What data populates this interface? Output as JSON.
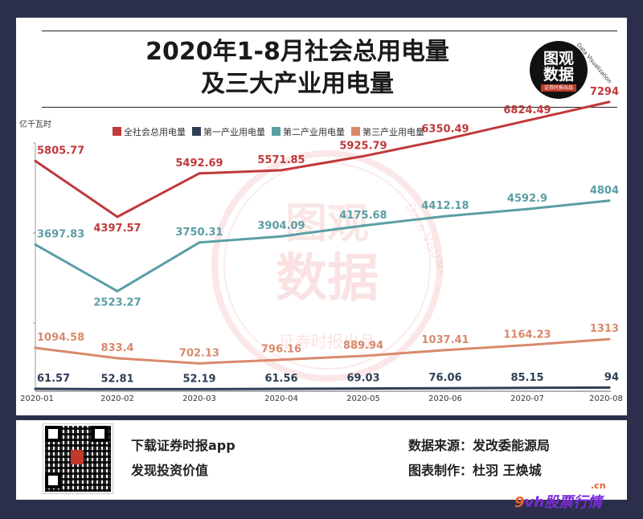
{
  "header": {
    "title_line1": "2020年1-8月社会总用电量",
    "title_line2": "及三大产业用电量"
  },
  "logo": {
    "line1": "图观",
    "line2": "数据",
    "line3": "证券时报出品",
    "arc_text": "Data Visualization"
  },
  "watermark": {
    "line1": "图观",
    "line2": "数据",
    "line3": "证券时报出品",
    "arc_text": "Data Visualization"
  },
  "chart_data": {
    "type": "line",
    "title": "2020年1-8月社会总用电量及三大产业用电量",
    "ylabel": "亿千瓦时",
    "xlabel": "",
    "ylim": [
      0,
      8000
    ],
    "grid": false,
    "legend_position": "top",
    "categories": [
      "2020-01",
      "2020-02",
      "2020-03",
      "2020-04",
      "2020-05",
      "2020-06",
      "2020-07",
      "2020-08"
    ],
    "series": [
      {
        "name": "全社会总用电量",
        "color": "#c0393b",
        "values": [
          5805.77,
          4397.57,
          5492.69,
          5571.85,
          5925.79,
          6350.49,
          6824.49,
          7294
        ],
        "labels": [
          "5805.77",
          "4397.57",
          "5492.69",
          "5571.85",
          "5925.79",
          "6350.49",
          "6824.49",
          "7294"
        ]
      },
      {
        "name": "第一产业用电量",
        "color": "#2e3f55",
        "values": [
          61.57,
          52.81,
          52.19,
          61.56,
          69.03,
          76.06,
          85.15,
          94
        ],
        "labels": [
          "61.57",
          "52.81",
          "52.19",
          "61.56",
          "69.03",
          "76.06",
          "85.15",
          "94"
        ]
      },
      {
        "name": "第二产业用电量",
        "color": "#5b9ea5",
        "values": [
          3697.83,
          2523.27,
          3750.31,
          3904.09,
          4175.68,
          4412.18,
          4592.9,
          4804
        ],
        "labels": [
          "3697.83",
          "2523.27",
          "3750.31",
          "3904.09",
          "4175.68",
          "4412.18",
          "4592.9",
          "4804"
        ]
      },
      {
        "name": "第三产业用电量",
        "color": "#d9896b",
        "values": [
          1094.58,
          833.4,
          702.13,
          796.16,
          889.94,
          1037.41,
          1164.23,
          1313
        ],
        "labels": [
          "1094.58",
          "833.4",
          "702.13",
          "796.16",
          "889.94",
          "1037.41",
          "1164.23",
          "1313"
        ]
      }
    ]
  },
  "footer": {
    "download": "下载证券时报app",
    "discover": "发现投资价值",
    "source": "数据来源：发改委能源局",
    "author": "图表制作：杜羽 王焕城"
  },
  "brand": {
    "nine": "9",
    "text": "vh股票行情",
    "cn": ".cn"
  }
}
